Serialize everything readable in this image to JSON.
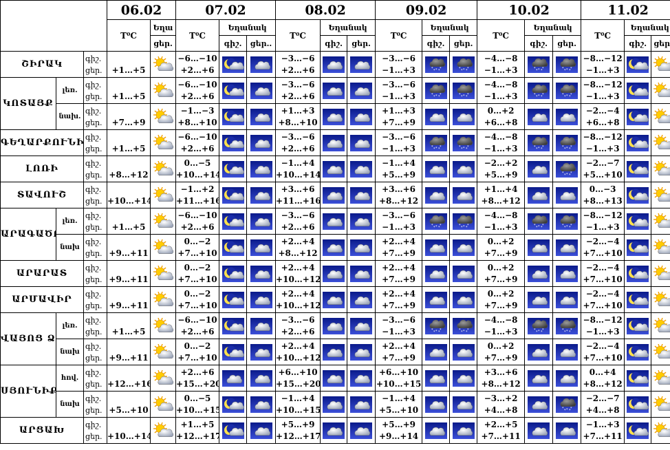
{
  "header": {
    "temp_label": "T⁰C",
    "weather_label": "Եղանակ",
    "weather_label_clipped": "Եղա",
    "night_label": "գիշ.",
    "day_label": "ցեր.",
    "day_label_clipped": "ցեր.."
  },
  "dates": [
    "06.02",
    "07.02",
    "08.02",
    "09.02",
    "10.02",
    "11.02"
  ],
  "regions": [
    {
      "name": "ՇԻՐԱԿ",
      "rows": [
        {
          "sub": "",
          "temps": [
            [
              "",
              "+1…+5"
            ],
            [
              "−6…−10",
              "+2…+6"
            ],
            [
              "−3…−6",
              "+2…+6"
            ],
            [
              "−3…−6",
              "−1…+3"
            ],
            [
              "−4…−8",
              "−1…+3"
            ],
            [
              "−8…−12",
              "−1…+3"
            ]
          ],
          "icons": [
            [
              "sun-cloud"
            ],
            [
              "moon-cloud",
              "cloud"
            ],
            [
              "cloud",
              "cloud"
            ],
            [
              "snow-cloud",
              "snow-cloud"
            ],
            [
              "snow-cloud",
              "snow-cloud"
            ],
            [
              "moon-cloud",
              "sun-cloud"
            ]
          ]
        }
      ]
    },
    {
      "name": "ԿՈՏԱՅՔ",
      "rows": [
        {
          "sub": "լեռ.",
          "temps": [
            [
              "",
              "+1…+5"
            ],
            [
              "−6…−10",
              "+2…+6"
            ],
            [
              "−3…−6",
              "+2…+6"
            ],
            [
              "−3…−6",
              "−1…+3"
            ],
            [
              "−4…−8",
              "−1…+3"
            ],
            [
              "−8…−12",
              "−1…+3"
            ]
          ],
          "icons": [
            [
              "sun-cloud"
            ],
            [
              "moon-cloud",
              "cloud"
            ],
            [
              "cloud",
              "cloud"
            ],
            [
              "snow-cloud",
              "snow-cloud"
            ],
            [
              "snow-cloud",
              "snow-cloud"
            ],
            [
              "moon-cloud",
              "sun-cloud"
            ]
          ]
        },
        {
          "sub": "նախ.",
          "temps": [
            [
              "",
              "+7…+9"
            ],
            [
              "−1…−3",
              "+8…+10"
            ],
            [
              "+1…+3",
              "+8…+10"
            ],
            [
              "+1…+3",
              "+7…+9"
            ],
            [
              "0…+2",
              "+6…+8"
            ],
            [
              "−2…−4",
              "+6…+8"
            ]
          ],
          "icons": [
            [
              "sun-cloud"
            ],
            [
              "moon-cloud",
              "cloud"
            ],
            [
              "cloud",
              "cloud"
            ],
            [
              "cloud",
              "cloud"
            ],
            [
              "cloud",
              "cloud"
            ],
            [
              "moon-cloud",
              "sun-cloud"
            ]
          ]
        }
      ]
    },
    {
      "name": "ԳԵՂԱՐՔՈՒՆԻՔ",
      "rows": [
        {
          "sub": "",
          "temps": [
            [
              "",
              "+1…+5"
            ],
            [
              "−6…−10",
              "+2…+6"
            ],
            [
              "−3…−6",
              "+2…+6"
            ],
            [
              "−3…−6",
              "−1…+3"
            ],
            [
              "−4…−8",
              "−1…+3"
            ],
            [
              "−8…−12",
              "−1…+3"
            ]
          ],
          "icons": [
            [
              "sun-cloud"
            ],
            [
              "moon-cloud",
              "cloud"
            ],
            [
              "cloud",
              "cloud"
            ],
            [
              "snow-cloud",
              "snow-cloud"
            ],
            [
              "snow-cloud",
              "snow-cloud"
            ],
            [
              "moon-cloud",
              "sun-cloud"
            ]
          ]
        }
      ]
    },
    {
      "name": "ԼՈՌԻ",
      "rows": [
        {
          "sub": "",
          "temps": [
            [
              "",
              "+8…+12"
            ],
            [
              "0…−5",
              "+10…+14"
            ],
            [
              "−1…+4",
              "+10…+14"
            ],
            [
              "−1…+4",
              "+5…+9"
            ],
            [
              "−2…+2",
              "+5…+9"
            ],
            [
              "−2…−7",
              "+5…+10"
            ]
          ],
          "icons": [
            [
              "sun-cloud"
            ],
            [
              "moon-cloud",
              "cloud"
            ],
            [
              "cloud",
              "cloud"
            ],
            [
              "cloud",
              "cloud"
            ],
            [
              "cloud",
              "snow-cloud"
            ],
            [
              "moon-cloud",
              "sun-cloud"
            ]
          ]
        }
      ]
    },
    {
      "name": "ՏԱՎՈՒՇ",
      "rows": [
        {
          "sub": "",
          "temps": [
            [
              "",
              "+10…+14"
            ],
            [
              "−1…+2",
              "+11…+16"
            ],
            [
              "+3…+6",
              "+11…+16"
            ],
            [
              "+3…+6",
              "+8…+12"
            ],
            [
              "+1…+4",
              "+8…+12"
            ],
            [
              "0…−3",
              "+8…+13"
            ]
          ],
          "icons": [
            [
              "sun-cloud"
            ],
            [
              "moon-cloud",
              "cloud"
            ],
            [
              "cloud",
              "cloud"
            ],
            [
              "cloud",
              "cloud"
            ],
            [
              "cloud",
              "cloud"
            ],
            [
              "moon-cloud",
              "sun-cloud"
            ]
          ]
        }
      ]
    },
    {
      "name": "ԱՐԱԳԱԾՈՏՆ",
      "rows": [
        {
          "sub": "լեռ.",
          "temps": [
            [
              "",
              "+1…+5"
            ],
            [
              "−6…−10",
              "+2…+6"
            ],
            [
              "−3…−6",
              "+2…+6"
            ],
            [
              "−3…−6",
              "−1…+3"
            ],
            [
              "−4…−8",
              "−1…+3"
            ],
            [
              "−8…−12",
              "−1…+3"
            ]
          ],
          "icons": [
            [
              "sun-cloud"
            ],
            [
              "moon-cloud",
              "cloud"
            ],
            [
              "cloud",
              "cloud"
            ],
            [
              "snow-cloud",
              "snow-cloud"
            ],
            [
              "snow-cloud",
              "snow-cloud"
            ],
            [
              "moon-cloud",
              "sun-cloud"
            ]
          ]
        },
        {
          "sub": "նախ",
          "temps": [
            [
              "",
              "+9…+11"
            ],
            [
              "0…−2",
              "+7…+10"
            ],
            [
              "+2…+4",
              "+8…+12"
            ],
            [
              "+2…+4",
              "+7…+9"
            ],
            [
              "0…+2",
              "+7…+9"
            ],
            [
              "−2…−4",
              "+7…+10"
            ]
          ],
          "icons": [
            [
              "sun-cloud"
            ],
            [
              "moon-cloud",
              "cloud"
            ],
            [
              "cloud",
              "cloud"
            ],
            [
              "cloud",
              "cloud"
            ],
            [
              "cloud",
              "cloud"
            ],
            [
              "moon-cloud",
              "sun-cloud"
            ]
          ]
        }
      ]
    },
    {
      "name": "ԱՐԱՐԱՏ",
      "rows": [
        {
          "sub": "",
          "temps": [
            [
              "",
              "+9…+11"
            ],
            [
              "0…−2",
              "+7…+10"
            ],
            [
              "+2…+4",
              "+10…+12"
            ],
            [
              "+2…+4",
              "+7…+9"
            ],
            [
              "0…+2",
              "+7…+9"
            ],
            [
              "−2…−4",
              "+7…+10"
            ]
          ],
          "icons": [
            [
              "sun-cloud"
            ],
            [
              "moon-cloud",
              "cloud"
            ],
            [
              "cloud",
              "cloud"
            ],
            [
              "cloud",
              "cloud"
            ],
            [
              "cloud",
              "cloud"
            ],
            [
              "moon-cloud",
              "sun-cloud"
            ]
          ]
        }
      ]
    },
    {
      "name": "ԱՐՄԱՎԻՐ",
      "rows": [
        {
          "sub": "",
          "temps": [
            [
              "",
              "+9…+11"
            ],
            [
              "0…−2",
              "+7…+10"
            ],
            [
              "+2…+4",
              "+10…+12"
            ],
            [
              "+2…+4",
              "+7…+9"
            ],
            [
              "0…+2",
              "+7…+9"
            ],
            [
              "−2…−4",
              "+7…+10"
            ]
          ],
          "icons": [
            [
              "sun-cloud"
            ],
            [
              "moon-cloud",
              "cloud"
            ],
            [
              "cloud",
              "cloud"
            ],
            [
              "cloud",
              "cloud"
            ],
            [
              "cloud",
              "cloud"
            ],
            [
              "moon-cloud",
              "sun-cloud"
            ]
          ]
        }
      ]
    },
    {
      "name": "ՎԱՅՈՑ ՁՈՐ",
      "rows": [
        {
          "sub": "լեռ.",
          "temps": [
            [
              "",
              "+1…+5"
            ],
            [
              "−6…−10",
              "+2…+6"
            ],
            [
              "−3…−6",
              "+2…+6"
            ],
            [
              "−3…−6",
              "−1…+3"
            ],
            [
              "−4…−8",
              "−1…+3"
            ],
            [
              "−8…−12",
              "−1…+3"
            ]
          ],
          "icons": [
            [
              "sun-cloud"
            ],
            [
              "moon-cloud",
              "cloud"
            ],
            [
              "cloud",
              "cloud"
            ],
            [
              "snow-cloud",
              "snow-cloud"
            ],
            [
              "snow-cloud",
              "snow-cloud"
            ],
            [
              "moon-cloud",
              "sun-cloud"
            ]
          ]
        },
        {
          "sub": "նախ",
          "temps": [
            [
              "",
              "+9…+11"
            ],
            [
              "0…−2",
              "+7…+10"
            ],
            [
              "+2…+4",
              "+10…+12"
            ],
            [
              "+2…+4",
              "+7…+9"
            ],
            [
              "0…+2",
              "+7…+9"
            ],
            [
              "−2…−4",
              "+7…+10"
            ]
          ],
          "icons": [
            [
              "sun-cloud"
            ],
            [
              "moon-cloud",
              "cloud"
            ],
            [
              "cloud",
              "cloud"
            ],
            [
              "cloud",
              "cloud"
            ],
            [
              "cloud",
              "cloud"
            ],
            [
              "moon-cloud",
              "sun-cloud"
            ]
          ]
        }
      ]
    },
    {
      "name": "ՍՅՈՒՆԻՔ",
      "rows": [
        {
          "sub": "հով.",
          "temps": [
            [
              "",
              "+12…+16"
            ],
            [
              "+2…+6",
              "+15…+20"
            ],
            [
              "+6…+10",
              "+15…+20"
            ],
            [
              "+6…+10",
              "+10…+15"
            ],
            [
              "+3…+6",
              "+8…+12"
            ],
            [
              "0…+4",
              "+8…+12"
            ]
          ],
          "icons": [
            [
              "sun-cloud"
            ],
            [
              "cloud",
              "cloud"
            ],
            [
              "cloud",
              "cloud"
            ],
            [
              "cloud",
              "cloud"
            ],
            [
              "cloud",
              "cloud"
            ],
            [
              "moon-cloud",
              "sun-cloud"
            ]
          ]
        },
        {
          "sub": "նախ",
          "temps": [
            [
              "",
              "+5…+10"
            ],
            [
              "0…−5",
              "+10…+15"
            ],
            [
              "−1…+4",
              "+10…+15"
            ],
            [
              "−1…+4",
              "+5…+10"
            ],
            [
              "−3…+2",
              "+4…+8"
            ],
            [
              "−2…−7",
              "+4…+8"
            ]
          ],
          "icons": [
            [
              "sun-cloud"
            ],
            [
              "moon-cloud",
              "cloud"
            ],
            [
              "cloud",
              "cloud"
            ],
            [
              "cloud",
              "cloud"
            ],
            [
              "cloud",
              "snow-cloud"
            ],
            [
              "moon-cloud",
              "sun-cloud"
            ]
          ]
        }
      ]
    },
    {
      "name": "ԱՐՑԱԽ",
      "rows": [
        {
          "sub": "",
          "temps": [
            [
              "",
              "+10…+14"
            ],
            [
              "+1…+5",
              "+12…+17"
            ],
            [
              "+5…+9",
              "+12…+17"
            ],
            [
              "+5…+9",
              "+9…+14"
            ],
            [
              "+2…+5",
              "+7…+11"
            ],
            [
              "−1…+3",
              "+7…+11"
            ]
          ],
          "icons": [
            [
              "sun-cloud"
            ],
            [
              "moon-cloud",
              "cloud"
            ],
            [
              "cloud",
              "cloud"
            ],
            [
              "cloud",
              "cloud"
            ],
            [
              "cloud",
              "cloud"
            ],
            [
              "moon-cloud",
              "sun-cloud"
            ]
          ]
        }
      ]
    }
  ]
}
